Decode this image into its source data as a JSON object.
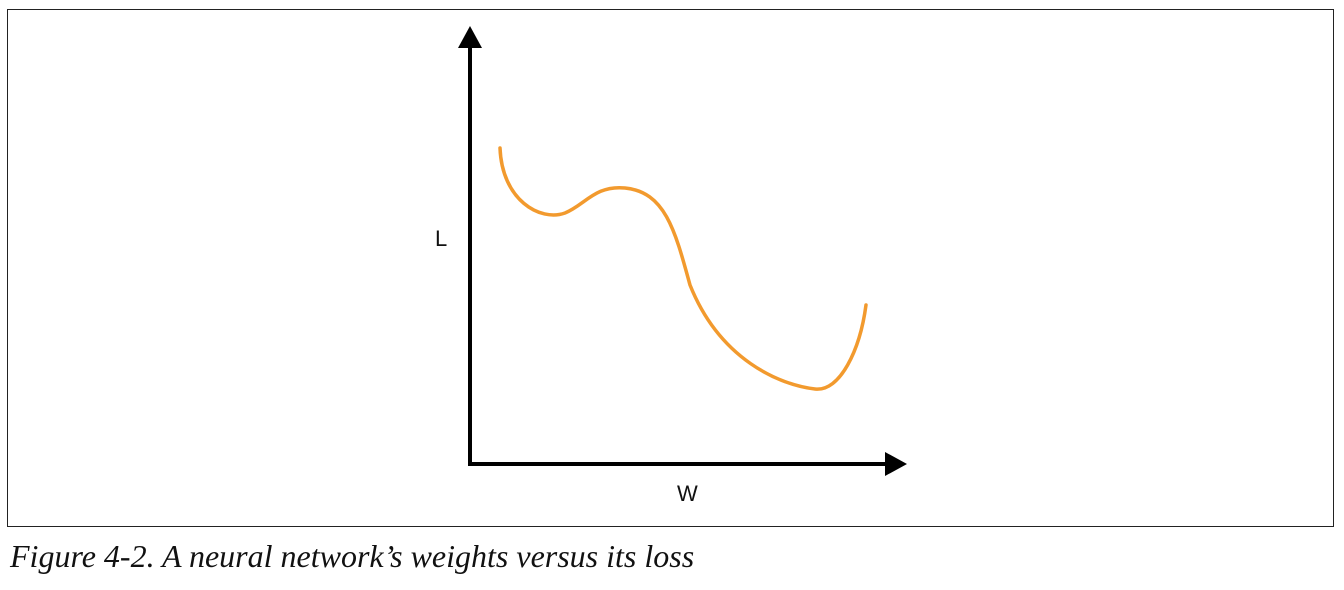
{
  "figure": {
    "caption": "Figure 4-2. A neural network’s weights versus its loss",
    "y_axis_label": "L",
    "x_axis_label": "W",
    "colors": {
      "curve": "#F29A2E",
      "axes": "#000000",
      "frame": "#222222"
    }
  }
}
